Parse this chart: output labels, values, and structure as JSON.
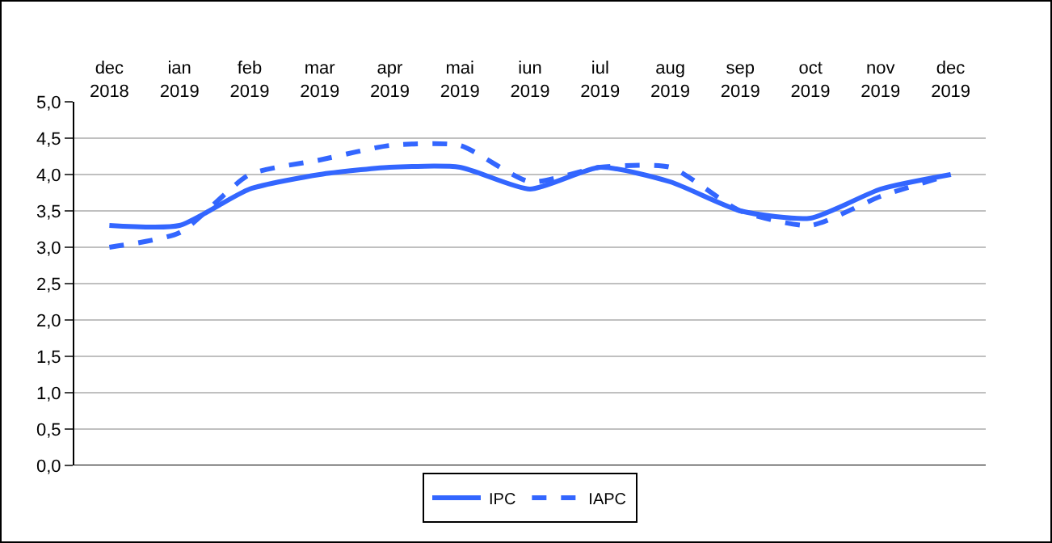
{
  "chart_data": {
    "type": "line",
    "categories": [
      "dec 2018",
      "ian 2019",
      "feb 2019",
      "mar 2019",
      "apr 2019",
      "mai 2019",
      "iun 2019",
      "iul 2019",
      "aug 2019",
      "sep 2019",
      "oct 2019",
      "nov 2019",
      "dec 2019"
    ],
    "series": [
      {
        "name": "IPC",
        "color": "#3366ff",
        "line_style": "solid",
        "values": [
          3.3,
          3.3,
          3.8,
          4.0,
          4.1,
          4.1,
          3.8,
          4.1,
          3.9,
          3.5,
          3.4,
          3.8,
          4.0
        ]
      },
      {
        "name": "IAPC",
        "color": "#3366ff",
        "line_style": "dashed",
        "values": [
          3.0,
          3.2,
          4.0,
          4.2,
          4.4,
          4.4,
          3.9,
          4.1,
          4.1,
          3.5,
          3.3,
          3.7,
          4.0
        ]
      }
    ],
    "ylim": [
      0,
      5
    ],
    "yticks": [
      {
        "value": 0,
        "label": "0,0"
      },
      {
        "value": 0.5,
        "label": "0,5"
      },
      {
        "value": 1,
        "label": "1,0"
      },
      {
        "value": 1.5,
        "label": "1,5"
      },
      {
        "value": 2,
        "label": "2,0"
      },
      {
        "value": 2.5,
        "label": "2,5"
      },
      {
        "value": 3,
        "label": "3,0"
      },
      {
        "value": 3.5,
        "label": "3,5"
      },
      {
        "value": 4,
        "label": "4,0"
      },
      {
        "value": 4.5,
        "label": "4,5"
      },
      {
        "value": 5,
        "label": "5,0"
      }
    ],
    "grid": "y",
    "legend": "bottom",
    "marker": "none"
  }
}
